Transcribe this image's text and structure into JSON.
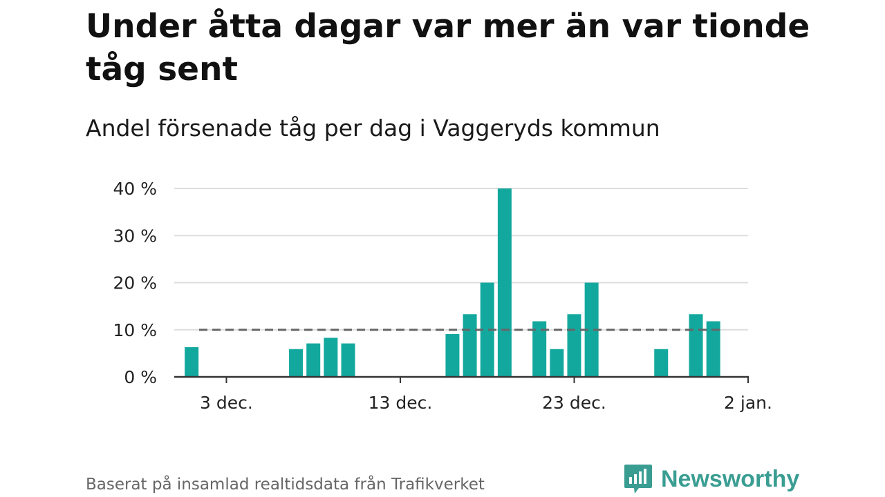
{
  "header": {
    "title": "Under åtta dagar var mer än var tionde tåg sent",
    "subtitle": "Andel försenade tåg per dag i Vaggeryds kommun"
  },
  "footer": {
    "source": "Baserat på insamlad realtidsdata från Trafikverket",
    "brand": "Newsworthy"
  },
  "colors": {
    "bar": "#13a89e",
    "reference_line": "#666666",
    "grid": "#dddddd",
    "brand": "#3a9d92"
  },
  "chart_data": {
    "type": "bar",
    "title": "Under åtta dagar var mer än var tionde tåg sent",
    "subtitle": "Andel försenade tåg per dag i Vaggeryds kommun",
    "xlabel": "",
    "ylabel": "",
    "x_unit": "day",
    "x": [
      "2022-12-01",
      "2022-12-02",
      "2022-12-03",
      "2022-12-04",
      "2022-12-05",
      "2022-12-06",
      "2022-12-07",
      "2022-12-08",
      "2022-12-09",
      "2022-12-10",
      "2022-12-11",
      "2022-12-12",
      "2022-12-13",
      "2022-12-14",
      "2022-12-15",
      "2022-12-16",
      "2022-12-17",
      "2022-12-18",
      "2022-12-19",
      "2022-12-20",
      "2022-12-21",
      "2022-12-22",
      "2022-12-23",
      "2022-12-24",
      "2022-12-25",
      "2022-12-26",
      "2022-12-27",
      "2022-12-28",
      "2022-12-29",
      "2022-12-30",
      "2022-12-31"
    ],
    "values": [
      6.3,
      0,
      0,
      0,
      0,
      0,
      5.9,
      7.1,
      8.3,
      7.1,
      0,
      0,
      0,
      0,
      0,
      9.1,
      13.3,
      20,
      40,
      0,
      11.8,
      5.9,
      13.3,
      20,
      0,
      0,
      0,
      5.9,
      0,
      13.3,
      11.8
    ],
    "xlim": [
      "2022-11-30",
      "2023-01-02"
    ],
    "ylim": [
      0,
      40
    ],
    "y_ticks": [
      {
        "value": 0,
        "label": "0 %"
      },
      {
        "value": 10,
        "label": "10 %"
      },
      {
        "value": 20,
        "label": "20 %"
      },
      {
        "value": 30,
        "label": "30 %"
      },
      {
        "value": 40,
        "label": "40 %"
      }
    ],
    "x_ticks": [
      {
        "value": "2022-12-03",
        "label": "3 dec."
      },
      {
        "value": "2022-12-13",
        "label": "13 dec."
      },
      {
        "value": "2022-12-23",
        "label": "23 dec."
      },
      {
        "value": "2023-01-02",
        "label": "2 jan."
      }
    ],
    "reference_line": {
      "value": 10,
      "style": "dashed"
    },
    "grid": true,
    "legend": "none"
  }
}
